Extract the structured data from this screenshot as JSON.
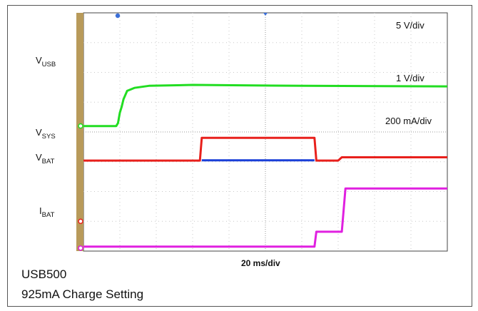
{
  "chart_data": {
    "type": "line",
    "title": "",
    "timebase": "20 ms/div",
    "x_divisions": 10,
    "y_divisions": 8,
    "caption_lines": [
      "USB500",
      "925mA Charge Setting"
    ],
    "channel_labels": [
      {
        "id": "vusb",
        "text": "V",
        "sub": "USB"
      },
      {
        "id": "vsys",
        "text": "V",
        "sub": "SYS"
      },
      {
        "id": "vbat",
        "text": "V",
        "sub": "BAT"
      },
      {
        "id": "ibat",
        "text": "I",
        "sub": "BAT"
      }
    ],
    "scales": {
      "v_usb": "5 V/div",
      "v_sys_bat": "1 V/div",
      "i_bat": "200 mA/div"
    },
    "colors": {
      "v_usb": "#22dd22",
      "v_sys": "#e8201c",
      "v_bat": "#1a3fd8",
      "i_bat": "#e020e0",
      "grid": "#c8c8c8",
      "left_bar": "#b89a5a"
    },
    "series": [
      {
        "id": "v_usb",
        "units": "div",
        "x": [
          0,
          0.9,
          0.95,
          1.0,
          1.05,
          1.1,
          1.2,
          1.4,
          1.8,
          3.0,
          6.0,
          10.0
        ],
        "y": [
          -3.8,
          -3.8,
          -3.7,
          -3.35,
          -3.15,
          -2.9,
          -2.62,
          -2.52,
          -2.45,
          -2.42,
          -2.45,
          -2.47
        ]
      },
      {
        "id": "v_sys",
        "units": "div",
        "x": [
          0,
          3.2,
          3.25,
          6.35,
          6.4,
          7.0,
          7.1,
          10.0
        ],
        "y": [
          -4.96,
          -4.96,
          -4.2,
          -4.2,
          -4.96,
          -4.96,
          -4.85,
          -4.85
        ]
      },
      {
        "id": "v_bat",
        "units": "div",
        "x": [
          3.25,
          6.35
        ],
        "y": [
          -4.95,
          -4.95
        ]
      },
      {
        "id": "i_bat",
        "units": "div",
        "x": [
          0,
          6.35,
          6.4,
          7.1,
          7.2,
          10.0
        ],
        "y": [
          -7.85,
          -7.85,
          -7.35,
          -7.35,
          -5.9,
          -5.9
        ]
      }
    ]
  }
}
